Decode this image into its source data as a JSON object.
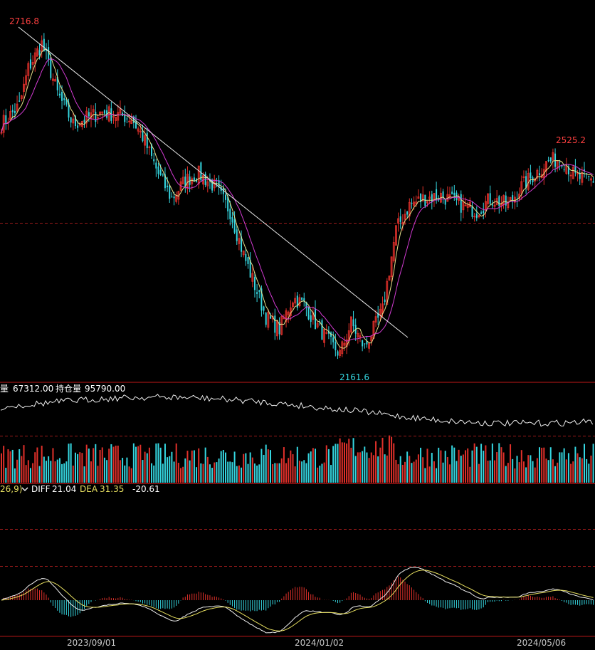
{
  "colors": {
    "background": "#000000",
    "up": "#e0302a",
    "down": "#35d6e0",
    "ma_short": "#e8e08a",
    "ma_long": "#d23bd2",
    "trendline": "#e8e8e8",
    "grid_dashed": "#9b1b1b",
    "separator": "#c01818",
    "open_interest": "#f0f0f0",
    "diff_line": "#f0f0f0",
    "dea_line": "#e8e060",
    "label_white": "#ffffff",
    "label_yellow": "#e8e060",
    "axis_text": "#c8c8c8",
    "high_label": "#ff4040",
    "low_label": "#35d6e0"
  },
  "price_panel": {
    "high_label": "2716.8",
    "low_label": "2161.6",
    "right_high_label": "2525.2"
  },
  "volume_panel": {
    "volume_prefix": "量",
    "volume_value": "67312.00",
    "oi_prefix": "持仓量",
    "oi_value": "95790.00"
  },
  "macd_panel": {
    "params": "26,9)",
    "dropdown_icon": "chevron-down-icon",
    "diff_label": "DIFF",
    "diff_value": "21.04",
    "dea_label": "DEA",
    "dea_value": "31.35",
    "macd_value": "-20.61"
  },
  "x_axis": {
    "labels": [
      "2023/09/01",
      "2024/01/02",
      "2024/05/06"
    ]
  },
  "chart_data": {
    "type": "candlestick",
    "x_tick_labels": [
      "2023/09/01",
      "2024/01/02",
      "2024/05/06"
    ],
    "price_ylim": [
      2140,
      2730
    ],
    "annotations": [
      {
        "text": "2716.8",
        "value": 2716.8,
        "kind": "high"
      },
      {
        "text": "2161.6",
        "value": 2161.6,
        "kind": "low"
      },
      {
        "text": "2525.2",
        "value": 2525.2,
        "kind": "local-high"
      }
    ],
    "price_anchors": [
      [
        0,
        2560
      ],
      [
        8,
        2590
      ],
      [
        12,
        2650
      ],
      [
        18,
        2690
      ],
      [
        25,
        2610
      ],
      [
        32,
        2560
      ],
      [
        38,
        2570
      ],
      [
        45,
        2580
      ],
      [
        52,
        2575
      ],
      [
        58,
        2570
      ],
      [
        63,
        2540
      ],
      [
        70,
        2480
      ],
      [
        76,
        2440
      ],
      [
        82,
        2470
      ],
      [
        88,
        2480
      ],
      [
        95,
        2460
      ],
      [
        102,
        2420
      ],
      [
        108,
        2350
      ],
      [
        114,
        2290
      ],
      [
        118,
        2250
      ],
      [
        124,
        2230
      ],
      [
        130,
        2280
      ],
      [
        135,
        2270
      ],
      [
        140,
        2240
      ],
      [
        146,
        2210
      ],
      [
        151,
        2190
      ],
      [
        156,
        2240
      ],
      [
        162,
        2200
      ],
      [
        170,
        2260
      ],
      [
        176,
        2390
      ],
      [
        182,
        2430
      ],
      [
        188,
        2440
      ],
      [
        196,
        2445
      ],
      [
        205,
        2430
      ],
      [
        212,
        2420
      ],
      [
        218,
        2440
      ],
      [
        226,
        2430
      ],
      [
        232,
        2460
      ],
      [
        238,
        2480
      ],
      [
        244,
        2500
      ],
      [
        250,
        2505
      ],
      [
        256,
        2475
      ],
      [
        264,
        2470
      ]
    ],
    "series": [
      {
        "name": "MA-short",
        "window": 5
      },
      {
        "name": "MA-long",
        "window": 12
      }
    ],
    "volume": {
      "status": "latest",
      "value": 67312.0
    },
    "open_interest": {
      "latest": 95790.0
    },
    "macd": {
      "diff": 21.04,
      "dea": 31.35,
      "macd": -20.61
    }
  }
}
